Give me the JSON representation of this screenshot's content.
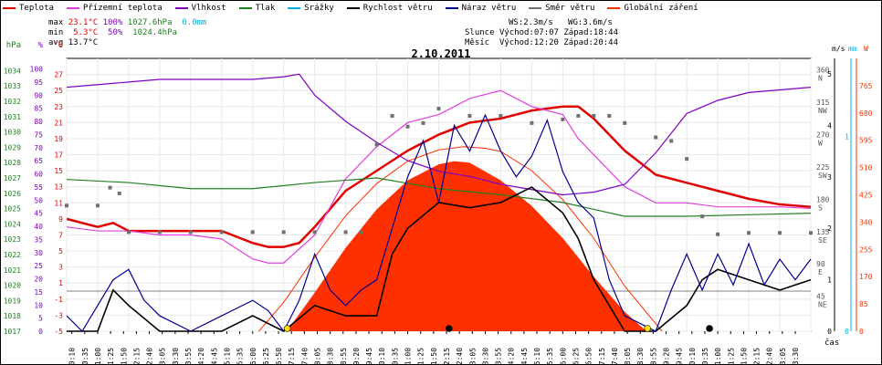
{
  "legend": [
    {
      "label": "Teplota",
      "color": "#e00000"
    },
    {
      "label": "Přízemní teplota",
      "color": "#e040e0"
    },
    {
      "label": "Vlhkost",
      "color": "#8000c0"
    },
    {
      "label": "Tlak",
      "color": "#208020"
    },
    {
      "label": "Srážky",
      "color": "#00b0e0"
    },
    {
      "label": "Rychlost větru",
      "color": "#000000"
    },
    {
      "label": "Náraz větru",
      "color": "#000090"
    },
    {
      "label": "Směr větru",
      "color": "#707070"
    },
    {
      "label": "Globální záření",
      "color": "#ff3000"
    }
  ],
  "stats": {
    "max_label": "max",
    "max_temp": "23.1°C",
    "max_hum": "100%",
    "max_press": "1027.6hPa",
    "max_rain": "0.0mm",
    "min_label": "min",
    "min_temp": "5.3°C",
    "min_hum": "50%",
    "min_press": "1024.4hPa",
    "avg_label": "avg",
    "avg_temp": "13.7°C",
    "ws": "WS:2.3m/s",
    "wg": "WG:3.6m/s",
    "sun_label": "Slunce",
    "sun_rise": "Východ:07:07",
    "sun_set": "Západ:18:44",
    "moon_label": "Měsíc",
    "moon_rise": "Východ:12:20",
    "moon_set": "Západ:20:44"
  },
  "chart_data": {
    "type": "line",
    "title": "2.10.2011",
    "x_unit": "čas",
    "x_ticks": [
      "00:10",
      "00:35",
      "01:00",
      "01:25",
      "01:50",
      "02:15",
      "02:40",
      "03:05",
      "03:30",
      "03:55",
      "04:20",
      "04:45",
      "05:10",
      "05:35",
      "06:00",
      "06:25",
      "06:50",
      "07:15",
      "07:40",
      "08:05",
      "08:30",
      "08:55",
      "09:20",
      "09:45",
      "10:10",
      "10:35",
      "11:00",
      "11:25",
      "11:50",
      "12:15",
      "12:40",
      "13:05",
      "13:30",
      "13:55",
      "14:20",
      "14:45",
      "15:10",
      "15:35",
      "16:00",
      "16:25",
      "16:50",
      "17:15",
      "17:40",
      "18:05",
      "18:30",
      "18:55",
      "19:20",
      "19:45",
      "20:10",
      "20:35",
      "21:00",
      "21:25",
      "21:50",
      "22:15",
      "22:40",
      "23:05",
      "23:30"
    ],
    "axes": {
      "pressure": {
        "unit": "hPa",
        "ticks": [
          "1017",
          "1018",
          "1019",
          "1020",
          "1021",
          "1022",
          "1023",
          "1024",
          "1025",
          "1026",
          "1027",
          "1028",
          "1029",
          "1030",
          "1031",
          "1032",
          "1033",
          "1034"
        ]
      },
      "humidity": {
        "unit": "%",
        "ticks": [
          "0",
          "5",
          "10",
          "15",
          "20",
          "25",
          "30",
          "35",
          "40",
          "45",
          "50",
          "55",
          "60",
          "65",
          "70",
          "75",
          "80",
          "85",
          "90",
          "95",
          "100"
        ]
      },
      "temperature": {
        "unit": "°C",
        "ticks": [
          "-5",
          "-3",
          "-1",
          "1",
          "3",
          "5",
          "7",
          "9",
          "11",
          "13",
          "15",
          "17",
          "19",
          "21",
          "23",
          "25",
          "27"
        ]
      },
      "wind_speed": {
        "unit": "m/s",
        "ticks": [
          "0",
          "1",
          "2",
          "3",
          "4",
          "5"
        ]
      },
      "rain": {
        "unit": "mm",
        "ticks": [
          "0",
          "1"
        ]
      },
      "wind_dir": {
        "ticks": [
          "360 N",
          "315 NW",
          "270 W",
          "225 SW",
          "180 S",
          "135 SE",
          "90 E",
          "45 NE"
        ]
      },
      "radiation": {
        "unit": "W",
        "ticks": [
          "0",
          "85",
          "170",
          "255",
          "340",
          "425",
          "510",
          "595",
          "680",
          "765"
        ]
      }
    },
    "series": [
      {
        "name": "Teplota",
        "axis": "temperature",
        "color": "#e00000",
        "x": [
          0,
          1,
          1.5,
          2,
          3,
          4,
          5,
          6,
          6.5,
          7,
          7.5,
          8,
          9,
          10,
          11,
          12,
          13,
          14,
          15,
          16,
          16.5,
          17,
          18,
          19,
          20,
          21,
          22,
          23,
          24
        ],
        "y": [
          9,
          8,
          8.5,
          7.5,
          7.5,
          7.5,
          7.5,
          6,
          5.5,
          5.5,
          6,
          8,
          12.5,
          15,
          17.5,
          19.5,
          21,
          21.5,
          22.5,
          23,
          23,
          21.5,
          17.5,
          14.5,
          13.5,
          12.5,
          11.5,
          10.8,
          10.5
        ]
      },
      {
        "name": "Přízemní teplota",
        "axis": "temperature",
        "color": "#e040e0",
        "x": [
          0,
          1,
          2,
          3,
          4,
          5,
          6,
          6.5,
          7,
          8,
          9,
          10,
          11,
          12,
          13,
          14,
          15,
          16,
          16.5,
          17,
          18,
          19,
          20,
          21,
          22,
          23,
          24
        ],
        "y": [
          8,
          7.5,
          7.5,
          7,
          7,
          6.5,
          4,
          3.5,
          3.5,
          7,
          14,
          18,
          21,
          22,
          24,
          25,
          23,
          22,
          19,
          17,
          13,
          11,
          11,
          10.5,
          10.5,
          10.5,
          10.3
        ]
      },
      {
        "name": "Vlhkost",
        "axis": "humidity",
        "color": "#8000c0",
        "x": [
          0,
          1,
          2,
          3,
          4,
          5,
          6,
          7,
          7.5,
          8,
          9,
          10,
          11,
          12,
          13,
          14,
          15,
          16,
          17,
          18,
          19,
          20,
          21,
          22,
          23,
          24
        ],
        "y": [
          93,
          94,
          95,
          96,
          96,
          96,
          96,
          97,
          98,
          90,
          80,
          72,
          65,
          61,
          59,
          56,
          54,
          52,
          53,
          56,
          68,
          83,
          88,
          91,
          92,
          93
        ]
      },
      {
        "name": "Tlak",
        "axis": "pressure",
        "color": "#208020",
        "x": [
          0,
          2,
          4,
          6,
          8,
          10,
          12,
          14,
          16,
          18,
          20,
          22,
          24
        ],
        "y": [
          1026.9,
          1026.7,
          1026.3,
          1026.3,
          1026.7,
          1027.0,
          1026.3,
          1025.9,
          1025.4,
          1024.5,
          1024.5,
          1024.6,
          1024.7
        ]
      },
      {
        "name": "Rychlost větru",
        "axis": "wind_speed",
        "color": "#000000",
        "x": [
          0,
          1,
          1.5,
          2,
          3,
          4,
          5,
          6,
          7,
          8,
          9,
          10,
          10.5,
          11,
          12,
          13,
          14,
          15,
          16,
          16.5,
          17,
          17.5,
          18,
          19,
          20,
          20.5,
          21,
          22,
          23,
          24
        ],
        "y": [
          0,
          0,
          0.8,
          0.5,
          0,
          0,
          0,
          0.3,
          0,
          0.5,
          0.3,
          0.3,
          1.5,
          2,
          2.5,
          2.4,
          2.5,
          2.8,
          2.3,
          1.8,
          1,
          0.5,
          0,
          0,
          0.5,
          1,
          1.2,
          1,
          0.8,
          1
        ]
      },
      {
        "name": "Náraz větru",
        "axis": "wind_speed",
        "color": "#000090",
        "x": [
          0,
          0.5,
          1,
          1.5,
          2,
          2.5,
          3,
          4,
          5,
          6,
          6.5,
          7,
          7.5,
          8,
          8.5,
          9,
          9.5,
          10,
          10.5,
          11,
          11.5,
          12,
          12.5,
          13,
          13.5,
          14,
          14.5,
          15,
          15.5,
          16,
          16.5,
          17,
          17.5,
          18,
          19,
          19.5,
          20,
          20.5,
          21,
          21.5,
          22,
          22.5,
          23,
          23.5,
          24
        ],
        "y": [
          0.3,
          0,
          0.5,
          1,
          1.2,
          0.6,
          0.3,
          0,
          0.3,
          0.6,
          0.4,
          0,
          0.6,
          1.5,
          0.8,
          0.5,
          0.8,
          1,
          2,
          3,
          3.7,
          2.5,
          4,
          3.5,
          4.2,
          3.5,
          3,
          3.4,
          4.1,
          3.1,
          2.5,
          2.2,
          1,
          0.3,
          0,
          0.8,
          1.5,
          0.8,
          1.5,
          0.9,
          1.7,
          0.9,
          1.4,
          1,
          1.4
        ]
      },
      {
        "name": "Směr větru",
        "axis": "wind_dir",
        "color": "#707070",
        "x": [
          0,
          1,
          1.4,
          1.7,
          2,
          3,
          4,
          5,
          6,
          7,
          8,
          9,
          9.5,
          10,
          10.5,
          11,
          11.5,
          12,
          13,
          14,
          15,
          16,
          16.5,
          17,
          17.5,
          18,
          19,
          19.5,
          20,
          20.5,
          21,
          22,
          23,
          24
        ],
        "y": [
          175,
          175,
          200,
          192,
          138,
          138,
          138,
          138,
          138,
          138,
          138,
          138,
          138,
          260,
          300,
          285,
          290,
          310,
          300,
          300,
          290,
          295,
          300,
          300,
          300,
          290,
          270,
          265,
          240,
          160,
          135,
          137,
          137,
          137
        ]
      },
      {
        "name": "Globální záření",
        "axis": "radiation",
        "color": "#ff3000",
        "x": [
          7.1,
          8,
          9,
          10,
          11,
          12,
          12.5,
          13,
          14,
          15,
          16,
          17,
          18,
          18.7
        ],
        "y": [
          0,
          120,
          260,
          380,
          470,
          520,
          530,
          525,
          470,
          390,
          290,
          170,
          60,
          0
        ]
      }
    ],
    "clear_sky_radiation": {
      "axis": "radiation",
      "x": [
        6.2,
        7,
        8,
        9,
        10,
        11,
        12,
        12.8,
        13.5,
        14,
        15,
        16,
        17,
        18,
        19.2
      ],
      "y": [
        0,
        90,
        230,
        360,
        460,
        530,
        565,
        575,
        570,
        560,
        500,
        410,
        290,
        140,
        0
      ]
    },
    "sun_moon_markers": [
      {
        "type": "sunrise",
        "time": "07:07",
        "color": "#ffe000"
      },
      {
        "type": "moonrise",
        "time": "12:20",
        "color": "#000000"
      },
      {
        "type": "sunset",
        "time": "18:44",
        "color": "#ffe000"
      },
      {
        "type": "moonset",
        "time": "20:44",
        "color": "#000000"
      }
    ]
  }
}
